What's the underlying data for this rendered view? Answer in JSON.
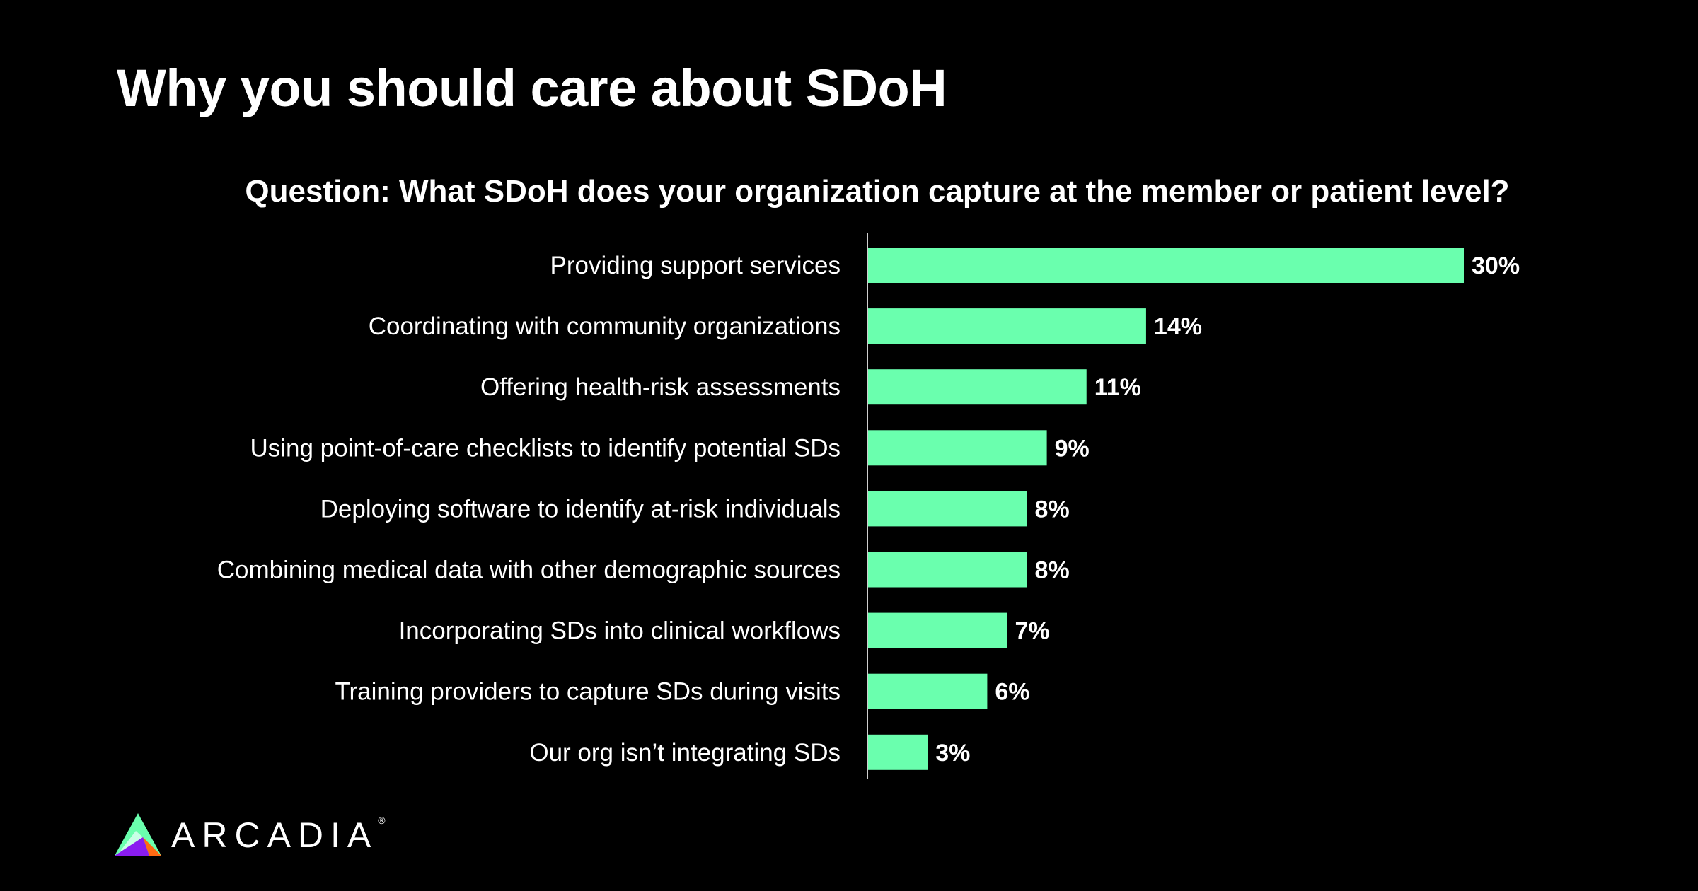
{
  "title": "Why you should care about SDoH",
  "logo": {
    "text": "ARCADIA",
    "registered": "®"
  },
  "chart_data": {
    "type": "bar",
    "orientation": "horizontal",
    "title": "Question: What SDoH does your organization capture at the member or patient level?",
    "categories": [
      "Providing support services",
      "Coordinating with community organizations",
      "Offering health-risk assessments",
      "Using point-of-care checklists to identify potential SDs",
      "Deploying software to identify at-risk individuals",
      "Combining medical data with other demographic sources",
      "Incorporating SDs into clinical workflows",
      "Training providers to capture SDs during visits",
      "Our org isn’t integrating SDs"
    ],
    "values": [
      30,
      14,
      11,
      9,
      8,
      8,
      7,
      6,
      3
    ],
    "value_labels": [
      "30%",
      "14%",
      "11%",
      "9%",
      "8%",
      "8%",
      "7%",
      "6%",
      "3%"
    ],
    "unit": "%",
    "xlim": [
      0,
      30
    ],
    "grid": false,
    "bar_color": "#6affae"
  }
}
